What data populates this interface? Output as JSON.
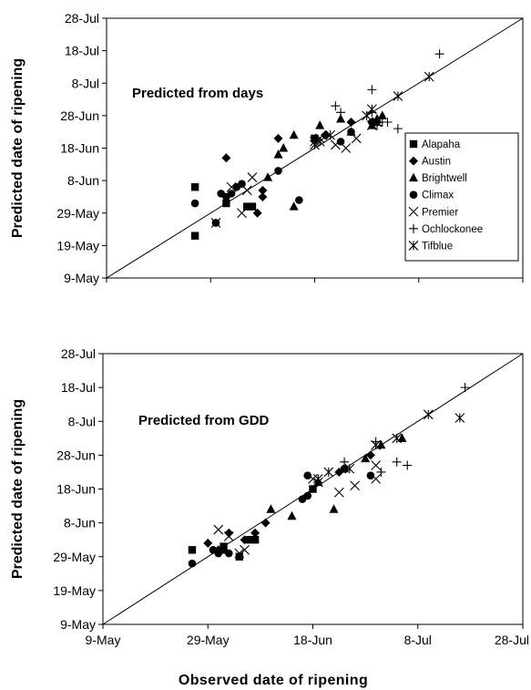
{
  "figure": {
    "xlabel": "Observed date of ripening",
    "ylabel": "Predicted date of ripening"
  },
  "chart_data": [
    {
      "type": "scatter",
      "title": "Predicted from days",
      "xlabel": "",
      "ylabel": "Predicted date of ripening",
      "x_ticks": [
        "9-May",
        "29-May",
        "18-Jun",
        "8-Jul",
        "28-Jul"
      ],
      "y_ticks": [
        "9-May",
        "19-May",
        "29-May",
        "8-Jun",
        "18-Jun",
        "28-Jun",
        "8-Jul",
        "18-Jul",
        "28-Jul"
      ],
      "xlim": [
        "2000-05-09",
        "2000-07-28"
      ],
      "ylim": [
        "2000-05-09",
        "2000-07-28"
      ],
      "reference_line": "1:1",
      "legend_position": "right",
      "series": [
        {
          "name": "Alapaha",
          "marker": "square",
          "points": [
            [
              "2000-05-26",
              "2000-06-06"
            ],
            [
              "2000-05-26",
              "2000-05-22"
            ],
            [
              "2000-06-01",
              "2000-06-01"
            ],
            [
              "2000-06-05",
              "2000-05-31"
            ],
            [
              "2000-06-06",
              "2000-05-31"
            ],
            [
              "2000-06-18",
              "2000-06-21"
            ]
          ]
        },
        {
          "name": "Austin",
          "marker": "diamond",
          "points": [
            [
              "2000-06-01",
              "2000-06-15"
            ],
            [
              "2000-06-07",
              "2000-05-29"
            ],
            [
              "2000-06-08",
              "2000-06-03"
            ],
            [
              "2000-06-08",
              "2000-06-05"
            ],
            [
              "2000-06-11",
              "2000-06-21"
            ],
            [
              "2000-06-20",
              "2000-06-22"
            ],
            [
              "2000-06-25",
              "2000-06-26"
            ],
            [
              "2000-06-29",
              "2000-06-26"
            ],
            [
              "2000-06-30",
              "2000-06-26"
            ]
          ]
        },
        {
          "name": "Brightwell",
          "marker": "triangle",
          "points": [
            [
              "2000-06-09",
              "2000-06-09"
            ],
            [
              "2000-06-11",
              "2000-06-16"
            ],
            [
              "2000-06-12",
              "2000-06-18"
            ],
            [
              "2000-06-14",
              "2000-06-22"
            ],
            [
              "2000-06-14",
              "2000-05-31"
            ],
            [
              "2000-06-19",
              "2000-06-25"
            ],
            [
              "2000-06-23",
              "2000-06-27"
            ],
            [
              "2000-06-25",
              "2000-06-23"
            ],
            [
              "2000-06-29",
              "2000-06-25"
            ],
            [
              "2000-06-30",
              "2000-06-27"
            ],
            [
              "2000-07-01",
              "2000-06-28"
            ]
          ]
        },
        {
          "name": "Climax",
          "marker": "circle",
          "points": [
            [
              "2000-05-26",
              "2000-06-01"
            ],
            [
              "2000-05-30",
              "2000-05-26"
            ],
            [
              "2000-05-31",
              "2000-06-04"
            ],
            [
              "2000-06-01",
              "2000-06-03"
            ],
            [
              "2000-06-02",
              "2000-06-04"
            ],
            [
              "2000-06-03",
              "2000-06-06"
            ],
            [
              "2000-06-04",
              "2000-06-07"
            ],
            [
              "2000-06-11",
              "2000-06-11"
            ],
            [
              "2000-06-15",
              "2000-06-02"
            ],
            [
              "2000-06-23",
              "2000-06-20"
            ],
            [
              "2000-06-25",
              "2000-06-23"
            ],
            [
              "2000-06-29",
              "2000-06-26"
            ]
          ]
        },
        {
          "name": "Premier",
          "marker": "x",
          "points": [
            [
              "2000-05-30",
              "2000-05-26"
            ],
            [
              "2000-06-02",
              "2000-06-06"
            ],
            [
              "2000-06-04",
              "2000-05-29"
            ],
            [
              "2000-06-05",
              "2000-06-05"
            ],
            [
              "2000-06-06",
              "2000-06-09"
            ],
            [
              "2000-06-18",
              "2000-06-20"
            ],
            [
              "2000-06-19",
              "2000-06-21"
            ],
            [
              "2000-06-22",
              "2000-06-19"
            ],
            [
              "2000-06-24",
              "2000-06-18"
            ],
            [
              "2000-06-26",
              "2000-06-21"
            ],
            [
              "2000-06-29",
              "2000-06-25"
            ],
            [
              "2000-06-30",
              "2000-06-26"
            ]
          ]
        },
        {
          "name": "Ochlockonee",
          "marker": "plus",
          "points": [
            [
              "2000-06-22",
              "2000-07-01"
            ],
            [
              "2000-06-23",
              "2000-06-29"
            ],
            [
              "2000-06-29",
              "2000-06-29"
            ],
            [
              "2000-06-29",
              "2000-07-06"
            ],
            [
              "2000-06-30",
              "2000-06-25"
            ],
            [
              "2000-07-01",
              "2000-06-26"
            ],
            [
              "2000-07-02",
              "2000-06-26"
            ],
            [
              "2000-07-04",
              "2000-06-24"
            ],
            [
              "2000-07-12",
              "2000-07-17"
            ]
          ]
        },
        {
          "name": "Tifblue",
          "marker": "asterisk",
          "points": [
            [
              "2000-06-18",
              "2000-06-19"
            ],
            [
              "2000-06-19",
              "2000-06-20"
            ],
            [
              "2000-06-21",
              "2000-06-22"
            ],
            [
              "2000-06-28",
              "2000-06-28"
            ],
            [
              "2000-06-29",
              "2000-06-30"
            ],
            [
              "2000-07-04",
              "2000-07-04"
            ],
            [
              "2000-07-10",
              "2000-07-10"
            ]
          ]
        }
      ]
    },
    {
      "type": "scatter",
      "title": "Predicted from GDD",
      "xlabel": "Observed date of ripening",
      "ylabel": "Predicted date of ripening",
      "x_ticks": [
        "9-May",
        "29-May",
        "18-Jun",
        "8-Jul",
        "28-Jul"
      ],
      "y_ticks": [
        "9-May",
        "19-May",
        "29-May",
        "8-Jun",
        "18-Jun",
        "28-Jun",
        "8-Jul",
        "18-Jul",
        "28-Jul"
      ],
      "xlim": [
        "2000-05-09",
        "2000-07-28"
      ],
      "ylim": [
        "2000-05-09",
        "2000-07-28"
      ],
      "reference_line": "1:1",
      "series": [
        {
          "name": "Alapaha",
          "marker": "square",
          "points": [
            [
              "2000-05-26",
              "2000-05-31"
            ],
            [
              "2000-06-01",
              "2000-06-01"
            ],
            [
              "2000-06-04",
              "2000-05-29"
            ],
            [
              "2000-06-06",
              "2000-06-03"
            ],
            [
              "2000-06-07",
              "2000-06-03"
            ],
            [
              "2000-06-18",
              "2000-06-18"
            ]
          ]
        },
        {
          "name": "Austin",
          "marker": "diamond",
          "points": [
            [
              "2000-05-29",
              "2000-06-02"
            ],
            [
              "2000-05-31",
              "2000-05-31"
            ],
            [
              "2000-06-02",
              "2000-06-05"
            ],
            [
              "2000-06-05",
              "2000-06-03"
            ],
            [
              "2000-06-07",
              "2000-06-05"
            ],
            [
              "2000-06-09",
              "2000-06-08"
            ],
            [
              "2000-06-23",
              "2000-06-23"
            ],
            [
              "2000-06-29",
              "2000-06-28"
            ]
          ]
        },
        {
          "name": "Brightwell",
          "marker": "triangle",
          "points": [
            [
              "2000-06-10",
              "2000-06-12"
            ],
            [
              "2000-06-14",
              "2000-06-10"
            ],
            [
              "2000-06-19",
              "2000-06-20"
            ],
            [
              "2000-06-22",
              "2000-06-12"
            ],
            [
              "2000-06-24",
              "2000-06-24"
            ],
            [
              "2000-06-28",
              "2000-06-27"
            ],
            [
              "2000-07-01",
              "2000-07-01"
            ],
            [
              "2000-07-05",
              "2000-07-03"
            ]
          ]
        },
        {
          "name": "Climax",
          "marker": "circle",
          "points": [
            [
              "2000-05-26",
              "2000-05-27"
            ],
            [
              "2000-05-30",
              "2000-05-31"
            ],
            [
              "2000-05-31",
              "2000-05-30"
            ],
            [
              "2000-06-01",
              "2000-05-31"
            ],
            [
              "2000-06-02",
              "2000-05-30"
            ],
            [
              "2000-06-16",
              "2000-06-15"
            ],
            [
              "2000-06-17",
              "2000-06-16"
            ],
            [
              "2000-06-17",
              "2000-06-22"
            ],
            [
              "2000-06-24",
              "2000-06-24"
            ],
            [
              "2000-06-29",
              "2000-06-22"
            ]
          ]
        },
        {
          "name": "Premier",
          "marker": "x",
          "points": [
            [
              "2000-05-31",
              "2000-06-06"
            ],
            [
              "2000-06-02",
              "2000-06-04"
            ],
            [
              "2000-06-04",
              "2000-05-30"
            ],
            [
              "2000-06-05",
              "2000-05-31"
            ],
            [
              "2000-06-18",
              "2000-06-21"
            ],
            [
              "2000-06-19",
              "2000-06-20"
            ],
            [
              "2000-06-23",
              "2000-06-17"
            ],
            [
              "2000-06-26",
              "2000-06-19"
            ],
            [
              "2000-06-30",
              "2000-06-21"
            ],
            [
              "2000-06-30",
              "2000-06-25"
            ],
            [
              "2000-06-30",
              "2000-07-01"
            ]
          ]
        },
        {
          "name": "Ochlockonee",
          "marker": "plus",
          "points": [
            [
              "2000-06-24",
              "2000-06-26"
            ],
            [
              "2000-06-30",
              "2000-07-02"
            ],
            [
              "2000-07-01",
              "2000-06-23"
            ],
            [
              "2000-07-04",
              "2000-06-26"
            ],
            [
              "2000-07-06",
              "2000-06-25"
            ],
            [
              "2000-07-17",
              "2000-07-18"
            ]
          ]
        },
        {
          "name": "Tifblue",
          "marker": "asterisk",
          "points": [
            [
              "2000-06-19",
              "2000-06-21"
            ],
            [
              "2000-06-21",
              "2000-06-23"
            ],
            [
              "2000-06-25",
              "2000-06-24"
            ],
            [
              "2000-06-30",
              "2000-07-01"
            ],
            [
              "2000-07-04",
              "2000-07-03"
            ],
            [
              "2000-07-10",
              "2000-07-10"
            ],
            [
              "2000-07-16",
              "2000-07-09"
            ]
          ]
        }
      ]
    }
  ]
}
